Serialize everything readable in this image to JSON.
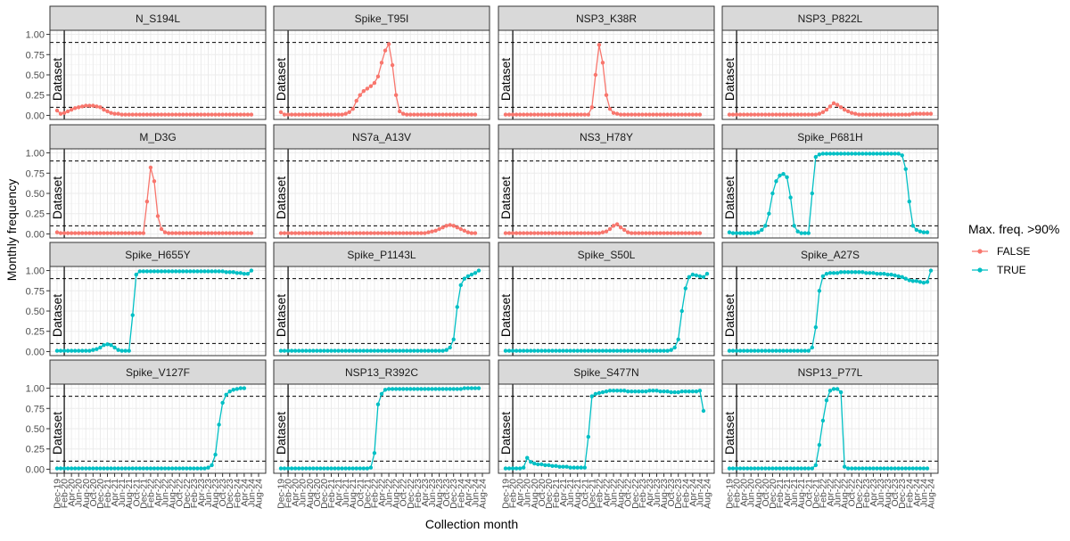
{
  "chart_data": {
    "type": "line",
    "layout": "facet_grid_4x4",
    "xlabel": "Collection month",
    "ylabel": "Monthly frequency",
    "ylim": [
      0,
      1
    ],
    "y_ticks": [
      "0.00",
      "0.25",
      "0.50",
      "0.75",
      "1.00"
    ],
    "y_tick_values": [
      0,
      0.25,
      0.5,
      0.75,
      1
    ],
    "x_tick_labels": [
      "Dec-19",
      "Feb-20",
      "Apr-20",
      "Jun-20",
      "Aug-20",
      "Oct-20",
      "Dec-20",
      "Feb-21",
      "Apr-21",
      "Jun-21",
      "Aug-21",
      "Oct-21",
      "Dec-21",
      "Feb-22",
      "Apr-22",
      "Jun-22",
      "Aug-22",
      "Oct-22",
      "Dec-22",
      "Feb-23",
      "Apr-23",
      "Jun-23",
      "Aug-23",
      "Oct-23",
      "Dec-23",
      "Feb-24",
      "Apr-24",
      "Jun-24",
      "Aug-24"
    ],
    "x_months": [
      "Dec-19",
      "Jan-20",
      "Feb-20",
      "Mar-20",
      "Apr-20",
      "May-20",
      "Jun-20",
      "Jul-20",
      "Aug-20",
      "Sep-20",
      "Oct-20",
      "Nov-20",
      "Dec-20",
      "Jan-21",
      "Feb-21",
      "Mar-21",
      "Apr-21",
      "May-21",
      "Jun-21",
      "Jul-21",
      "Aug-21",
      "Sep-21",
      "Oct-21",
      "Nov-21",
      "Dec-21",
      "Jan-22",
      "Feb-22",
      "Mar-22",
      "Apr-22",
      "May-22",
      "Jun-22",
      "Jul-22",
      "Aug-22",
      "Sep-22",
      "Oct-22",
      "Nov-22",
      "Dec-22",
      "Jan-23",
      "Feb-23",
      "Mar-23",
      "Apr-23",
      "May-23",
      "Jun-23",
      "Jul-23",
      "Aug-23",
      "Sep-23",
      "Oct-23",
      "Nov-23",
      "Dec-23",
      "Jan-24",
      "Feb-24",
      "Mar-24",
      "Apr-24",
      "May-24",
      "Jun-24",
      "Jul-24",
      "Aug-24"
    ],
    "thresholds": [
      0.1,
      0.9
    ],
    "vline": {
      "x": "Feb-20",
      "label": "Dataset"
    },
    "legend": {
      "title": "Max. freq. >90%",
      "position": "right",
      "entries": [
        {
          "label": "FALSE",
          "color": "#F8766D"
        },
        {
          "label": "TRUE",
          "color": "#00BFC4"
        }
      ]
    },
    "grid": true,
    "panels": [
      {
        "title": "N_S194L",
        "group": "FALSE",
        "start": 0,
        "values": [
          0.06,
          0.02,
          0.03,
          0.05,
          0.07,
          0.09,
          0.1,
          0.11,
          0.12,
          0.12,
          0.12,
          0.11,
          0.1,
          0.07,
          0.05,
          0.03,
          0.02,
          0.02,
          0.01,
          0.01,
          0.01,
          0.01,
          0.01,
          0.01,
          0.01,
          0.01,
          0.01,
          0.01,
          0.01,
          0.01,
          0.01,
          0.01,
          0.01,
          0.01,
          0.01,
          0.01,
          0.01,
          0.01,
          0.01,
          0.01,
          0.01,
          0.01,
          0.01,
          0.01,
          0.01,
          0.01,
          0.01,
          0.01,
          0.01,
          0.01,
          0.01,
          0.01,
          0.01,
          0.01,
          0.01
        ]
      },
      {
        "title": "Spike_T95I",
        "group": "FALSE",
        "start": 0,
        "values": [
          0.04,
          0.01,
          0.01,
          0.01,
          0.01,
          0.01,
          0.01,
          0.01,
          0.01,
          0.01,
          0.01,
          0.01,
          0.01,
          0.01,
          0.01,
          0.01,
          0.01,
          0.01,
          0.02,
          0.04,
          0.08,
          0.18,
          0.25,
          0.3,
          0.33,
          0.36,
          0.4,
          0.48,
          0.65,
          0.8,
          0.88,
          0.62,
          0.25,
          0.05,
          0.02,
          0.01,
          0.01,
          0.01,
          0.01,
          0.01,
          0.01,
          0.01,
          0.01,
          0.01,
          0.01,
          0.01,
          0.01,
          0.01,
          0.01,
          0.01,
          0.01,
          0.01,
          0.01,
          0.01,
          0.01
        ]
      },
      {
        "title": "NSP3_K38R",
        "group": "FALSE",
        "start": 0,
        "values": [
          0.01,
          0.01,
          0.01,
          0.01,
          0.01,
          0.01,
          0.01,
          0.01,
          0.01,
          0.01,
          0.01,
          0.01,
          0.01,
          0.01,
          0.01,
          0.01,
          0.01,
          0.01,
          0.01,
          0.01,
          0.01,
          0.01,
          0.01,
          0.01,
          0.1,
          0.5,
          0.87,
          0.65,
          0.25,
          0.08,
          0.03,
          0.02,
          0.01,
          0.01,
          0.01,
          0.01,
          0.01,
          0.01,
          0.01,
          0.01,
          0.01,
          0.01,
          0.01,
          0.01,
          0.01,
          0.01,
          0.01,
          0.01,
          0.01,
          0.01,
          0.01,
          0.01,
          0.01,
          0.01,
          0.01
        ]
      },
      {
        "title": "NSP3_P822L",
        "group": "FALSE",
        "start": 0,
        "values": [
          0.01,
          0.01,
          0.01,
          0.01,
          0.01,
          0.01,
          0.01,
          0.01,
          0.01,
          0.01,
          0.01,
          0.01,
          0.01,
          0.01,
          0.01,
          0.01,
          0.01,
          0.01,
          0.01,
          0.01,
          0.01,
          0.01,
          0.01,
          0.01,
          0.01,
          0.02,
          0.04,
          0.07,
          0.11,
          0.15,
          0.13,
          0.1,
          0.07,
          0.05,
          0.03,
          0.02,
          0.01,
          0.01,
          0.01,
          0.01,
          0.01,
          0.01,
          0.01,
          0.01,
          0.01,
          0.01,
          0.01,
          0.01,
          0.01,
          0.01,
          0.01,
          0.02,
          0.02,
          0.02,
          0.02,
          0.02,
          0.02
        ]
      },
      {
        "title": "M_D3G",
        "group": "FALSE",
        "start": 0,
        "values": [
          0.02,
          0.01,
          0.01,
          0.01,
          0.01,
          0.01,
          0.01,
          0.01,
          0.01,
          0.01,
          0.01,
          0.01,
          0.01,
          0.01,
          0.01,
          0.01,
          0.01,
          0.01,
          0.01,
          0.01,
          0.01,
          0.01,
          0.01,
          0.01,
          0.01,
          0.4,
          0.82,
          0.65,
          0.22,
          0.06,
          0.02,
          0.01,
          0.01,
          0.01,
          0.01,
          0.01,
          0.01,
          0.01,
          0.01,
          0.01,
          0.01,
          0.01,
          0.01,
          0.01,
          0.01,
          0.01,
          0.01,
          0.01,
          0.01,
          0.01,
          0.01,
          0.01,
          0.01,
          0.01,
          0.01
        ]
      },
      {
        "title": "NS7a_A13V",
        "group": "FALSE",
        "start": 0,
        "values": [
          0.01,
          0.01,
          0.01,
          0.01,
          0.01,
          0.01,
          0.01,
          0.01,
          0.01,
          0.01,
          0.01,
          0.01,
          0.01,
          0.01,
          0.01,
          0.01,
          0.01,
          0.01,
          0.01,
          0.01,
          0.01,
          0.01,
          0.01,
          0.01,
          0.01,
          0.01,
          0.01,
          0.01,
          0.01,
          0.01,
          0.01,
          0.01,
          0.01,
          0.01,
          0.01,
          0.01,
          0.01,
          0.01,
          0.01,
          0.01,
          0.01,
          0.02,
          0.03,
          0.04,
          0.06,
          0.08,
          0.1,
          0.11,
          0.1,
          0.08,
          0.06,
          0.04,
          0.02,
          0.01,
          0.01
        ]
      },
      {
        "title": "NS3_H78Y",
        "group": "FALSE",
        "start": 0,
        "values": [
          0.01,
          0.01,
          0.01,
          0.01,
          0.01,
          0.01,
          0.01,
          0.01,
          0.01,
          0.01,
          0.01,
          0.01,
          0.01,
          0.01,
          0.01,
          0.01,
          0.01,
          0.01,
          0.01,
          0.01,
          0.01,
          0.01,
          0.01,
          0.01,
          0.01,
          0.01,
          0.01,
          0.02,
          0.03,
          0.06,
          0.1,
          0.12,
          0.08,
          0.05,
          0.02,
          0.01,
          0.01,
          0.01,
          0.01,
          0.01,
          0.01,
          0.01,
          0.01,
          0.01,
          0.01,
          0.01,
          0.01,
          0.01,
          0.01,
          0.01,
          0.01,
          0.01,
          0.01,
          0.01,
          0.01
        ]
      },
      {
        "title": "Spike_P681H",
        "group": "TRUE",
        "start": 0,
        "values": [
          0.02,
          0.01,
          0.01,
          0.01,
          0.01,
          0.01,
          0.01,
          0.01,
          0.02,
          0.05,
          0.1,
          0.25,
          0.5,
          0.65,
          0.72,
          0.74,
          0.7,
          0.45,
          0.1,
          0.03,
          0.01,
          0.01,
          0.01,
          0.5,
          0.95,
          0.98,
          0.99,
          0.99,
          0.99,
          0.99,
          0.99,
          0.99,
          0.99,
          0.99,
          0.99,
          0.99,
          0.99,
          0.99,
          0.99,
          0.99,
          0.99,
          0.99,
          0.99,
          0.99,
          0.99,
          0.99,
          0.99,
          0.99,
          0.97,
          0.8,
          0.4,
          0.1,
          0.05,
          0.03,
          0.02,
          0.02
        ]
      },
      {
        "title": "Spike_H655Y",
        "group": "TRUE",
        "start": 0,
        "values": [
          0.01,
          0.01,
          0.01,
          0.01,
          0.01,
          0.01,
          0.01,
          0.01,
          0.01,
          0.01,
          0.02,
          0.03,
          0.05,
          0.08,
          0.09,
          0.08,
          0.05,
          0.02,
          0.01,
          0.01,
          0.01,
          0.45,
          0.95,
          0.99,
          0.99,
          0.99,
          0.99,
          0.99,
          0.99,
          0.99,
          0.99,
          0.99,
          0.99,
          0.99,
          0.99,
          0.99,
          0.99,
          0.99,
          0.99,
          0.99,
          0.99,
          0.99,
          0.99,
          0.99,
          0.99,
          0.99,
          0.99,
          0.98,
          0.98,
          0.98,
          0.97,
          0.97,
          0.96,
          0.96,
          1.0
        ]
      },
      {
        "title": "Spike_P1143L",
        "group": "TRUE",
        "start": 0,
        "values": [
          0.01,
          0.01,
          0.01,
          0.01,
          0.01,
          0.01,
          0.01,
          0.01,
          0.01,
          0.01,
          0.01,
          0.01,
          0.01,
          0.01,
          0.01,
          0.01,
          0.01,
          0.01,
          0.01,
          0.01,
          0.01,
          0.01,
          0.01,
          0.01,
          0.01,
          0.01,
          0.01,
          0.01,
          0.01,
          0.01,
          0.01,
          0.01,
          0.01,
          0.01,
          0.01,
          0.01,
          0.01,
          0.01,
          0.01,
          0.01,
          0.01,
          0.01,
          0.01,
          0.01,
          0.01,
          0.01,
          0.02,
          0.05,
          0.15,
          0.55,
          0.82,
          0.9,
          0.93,
          0.95,
          0.97,
          1.0
        ]
      },
      {
        "title": "Spike_S50L",
        "group": "TRUE",
        "start": 0,
        "values": [
          0.01,
          0.01,
          0.01,
          0.01,
          0.01,
          0.01,
          0.01,
          0.01,
          0.01,
          0.01,
          0.01,
          0.01,
          0.01,
          0.01,
          0.01,
          0.01,
          0.01,
          0.01,
          0.01,
          0.01,
          0.01,
          0.01,
          0.01,
          0.01,
          0.01,
          0.01,
          0.01,
          0.01,
          0.01,
          0.01,
          0.01,
          0.01,
          0.01,
          0.01,
          0.01,
          0.01,
          0.01,
          0.01,
          0.01,
          0.01,
          0.01,
          0.01,
          0.01,
          0.01,
          0.01,
          0.01,
          0.02,
          0.05,
          0.15,
          0.5,
          0.78,
          0.92,
          0.95,
          0.94,
          0.93,
          0.92,
          0.96
        ]
      },
      {
        "title": "Spike_A27S",
        "group": "TRUE",
        "start": 0,
        "values": [
          0.01,
          0.01,
          0.01,
          0.01,
          0.01,
          0.01,
          0.01,
          0.01,
          0.01,
          0.01,
          0.01,
          0.01,
          0.01,
          0.01,
          0.01,
          0.01,
          0.01,
          0.01,
          0.01,
          0.01,
          0.01,
          0.01,
          0.01,
          0.05,
          0.3,
          0.75,
          0.93,
          0.96,
          0.97,
          0.97,
          0.97,
          0.98,
          0.98,
          0.98,
          0.98,
          0.98,
          0.98,
          0.98,
          0.97,
          0.97,
          0.97,
          0.96,
          0.96,
          0.96,
          0.95,
          0.95,
          0.94,
          0.93,
          0.92,
          0.9,
          0.88,
          0.87,
          0.87,
          0.86,
          0.85,
          0.86,
          1.0
        ]
      },
      {
        "title": "Spike_V127F",
        "group": "TRUE",
        "start": 0,
        "values": [
          0.01,
          0.01,
          0.01,
          0.01,
          0.01,
          0.01,
          0.01,
          0.01,
          0.01,
          0.01,
          0.01,
          0.01,
          0.01,
          0.01,
          0.01,
          0.01,
          0.01,
          0.01,
          0.01,
          0.01,
          0.01,
          0.01,
          0.01,
          0.01,
          0.01,
          0.01,
          0.01,
          0.01,
          0.01,
          0.01,
          0.01,
          0.01,
          0.01,
          0.01,
          0.01,
          0.01,
          0.01,
          0.01,
          0.01,
          0.01,
          0.01,
          0.01,
          0.02,
          0.05,
          0.18,
          0.55,
          0.82,
          0.92,
          0.96,
          0.98,
          0.99,
          1.0,
          1.0
        ]
      },
      {
        "title": "NSP13_R392C",
        "group": "TRUE",
        "start": 0,
        "values": [
          0.01,
          0.01,
          0.01,
          0.01,
          0.01,
          0.01,
          0.01,
          0.01,
          0.01,
          0.01,
          0.01,
          0.01,
          0.01,
          0.01,
          0.01,
          0.01,
          0.01,
          0.01,
          0.01,
          0.01,
          0.01,
          0.01,
          0.01,
          0.01,
          0.01,
          0.02,
          0.2,
          0.8,
          0.93,
          0.98,
          0.99,
          0.99,
          0.99,
          0.99,
          0.99,
          0.99,
          0.99,
          0.99,
          0.99,
          0.99,
          0.99,
          0.99,
          0.99,
          0.99,
          0.99,
          0.99,
          0.99,
          0.99,
          0.99,
          0.99,
          0.99,
          1.0,
          1.0,
          1.0,
          1.0,
          1.0
        ]
      },
      {
        "title": "Spike_S477N",
        "group": "TRUE",
        "start": 0,
        "values": [
          0.01,
          0.01,
          0.01,
          0.01,
          0.01,
          0.02,
          0.14,
          0.09,
          0.07,
          0.06,
          0.06,
          0.05,
          0.05,
          0.04,
          0.04,
          0.03,
          0.03,
          0.03,
          0.02,
          0.02,
          0.02,
          0.02,
          0.02,
          0.4,
          0.9,
          0.93,
          0.94,
          0.95,
          0.96,
          0.97,
          0.97,
          0.97,
          0.97,
          0.97,
          0.96,
          0.96,
          0.96,
          0.96,
          0.96,
          0.96,
          0.97,
          0.97,
          0.97,
          0.96,
          0.96,
          0.96,
          0.95,
          0.95,
          0.95,
          0.96,
          0.96,
          0.96,
          0.96,
          0.96,
          0.97,
          0.72
        ]
      },
      {
        "title": "NSP13_P77L",
        "group": "TRUE",
        "start": 0,
        "values": [
          0.01,
          0.01,
          0.01,
          0.01,
          0.01,
          0.01,
          0.01,
          0.01,
          0.01,
          0.01,
          0.01,
          0.01,
          0.01,
          0.01,
          0.01,
          0.01,
          0.01,
          0.01,
          0.01,
          0.01,
          0.01,
          0.01,
          0.01,
          0.01,
          0.05,
          0.3,
          0.6,
          0.85,
          0.97,
          0.99,
          0.99,
          0.95,
          0.03,
          0.01,
          0.01,
          0.01,
          0.01,
          0.01,
          0.01,
          0.01,
          0.01,
          0.01,
          0.01,
          0.01,
          0.01,
          0.01,
          0.01,
          0.01,
          0.01,
          0.01,
          0.01,
          0.01,
          0.01,
          0.01,
          0.01,
          0.01
        ]
      }
    ]
  }
}
